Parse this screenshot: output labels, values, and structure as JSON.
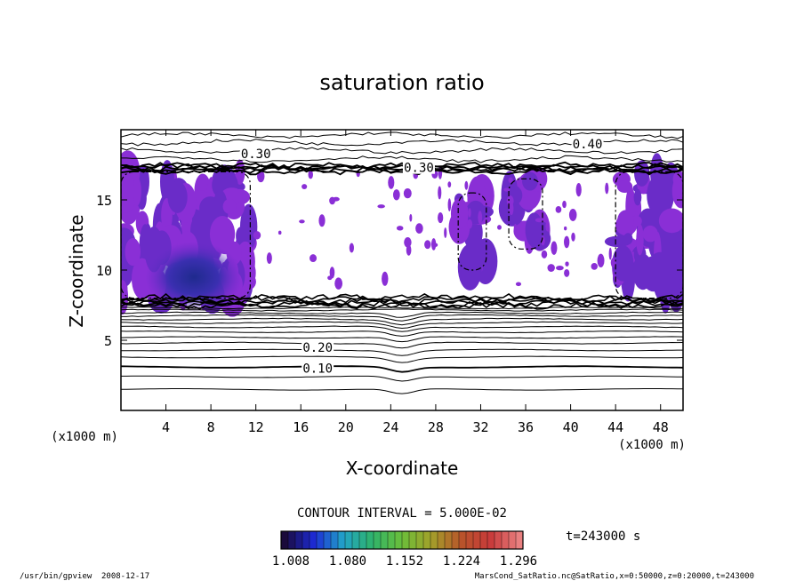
{
  "chart_data": {
    "type": "heatmap",
    "title": "saturation ratio",
    "xlabel": "X-coordinate",
    "ylabel": "Z-coordinate",
    "x_unit_left": "(x1000 m)",
    "x_unit_right": "(x1000 m)",
    "xlim": [
      0,
      50
    ],
    "ylim": [
      0,
      20
    ],
    "x_ticks": [
      4,
      8,
      12,
      16,
      20,
      24,
      28,
      32,
      36,
      40,
      44,
      48
    ],
    "y_ticks": [
      5,
      10,
      15
    ],
    "contour_labels": [
      {
        "text": "0.10",
        "x": 17.5,
        "z": 3.0
      },
      {
        "text": "0.20",
        "x": 17.5,
        "z": 4.5
      },
      {
        "text": "0.30",
        "x": 12.0,
        "z": 18.3
      },
      {
        "text": "0.40",
        "x": 41.5,
        "z": 19.0
      },
      {
        "text": "0.30",
        "x": 26.5,
        "z": 17.3
      }
    ],
    "supersaturated_regions": [
      {
        "x": [
          0,
          11.5
        ],
        "z": [
          8.0,
          17.0
        ],
        "peak_x": 6.5,
        "peak_z": 9.5
      },
      {
        "x": [
          44,
          50
        ],
        "z": [
          8.0,
          17.0
        ]
      },
      {
        "x": [
          30,
          32.5
        ],
        "z": [
          10.0,
          15.5
        ]
      },
      {
        "x": [
          34.5,
          37.5
        ],
        "z": [
          11.5,
          16.5
        ]
      }
    ],
    "contour_interval_label": "CONTOUR INTERVAL = 5.000E-02",
    "time_label": "t=243000 s",
    "colorbar": {
      "labels": [
        "1.008",
        "1.080",
        "1.152",
        "1.224",
        "1.296"
      ],
      "colors": [
        "#1a0a3a",
        "#1d2bd6",
        "#21a3c8",
        "#2fb36a",
        "#6bbf3a",
        "#a3a02a",
        "#b8552a",
        "#c83a3a",
        "#e98080"
      ]
    },
    "colors": {
      "supersat_light": "#8a2fd6",
      "supersat_mid": "#6a2cc8",
      "supersat_dark": "#2a2b9a"
    }
  },
  "footer": {
    "program": "/usr/bin/gpview",
    "date": "2008-12-17",
    "source": "MarsCond_SatRatio.nc@SatRatio,x=0:50000,z=0:20000,t=243000"
  }
}
